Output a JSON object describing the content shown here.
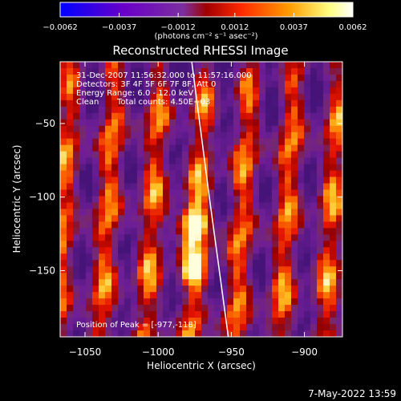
{
  "chart_data": {
    "type": "heatmap",
    "title": "Reconstructed RHESSI Image",
    "xlabel": "Heliocentric X (arcsec)",
    "ylabel": "Heliocentric Y (arcsec)",
    "xlim": [
      -1067,
      -874
    ],
    "ylim": [
      -195,
      -8
    ],
    "x_ticks": [
      -1050,
      -1000,
      -950,
      -900
    ],
    "y_ticks": [
      -50,
      -100,
      -150
    ],
    "x_tick_labels": [
      "−1050",
      "−1000",
      "−950",
      "−900"
    ],
    "y_tick_labels": [
      "−50",
      "−100",
      "−150"
    ],
    "colorbar": {
      "min": -0.0062,
      "max": 0.0062,
      "ticks": [
        -0.0062,
        -0.0037,
        -0.0012,
        0.0012,
        0.0037,
        0.0062
      ],
      "tick_labels": [
        "−0.0062",
        "−0.0037",
        "−0.0012",
        "0.0012",
        "0.0037",
        "0.0062"
      ],
      "unit_label": "(photons cm⁻² s⁻¹ asec⁻²)",
      "colors": [
        "#0000ff",
        "#6a00c8",
        "#7b2fa0",
        "#a00000",
        "#ff2a00",
        "#ff9a00",
        "#ffff80",
        "#ffffff"
      ]
    },
    "annotations": {
      "time_range": "31-Dec-2007 11:56:32.000 to 11:57:16.000",
      "detectors": "Detectors: 3F 4F 5F 6F 7F 8F, Att 0",
      "energy_range": "Energy Range: 6.0 - 12.0 keV",
      "method": "Clean",
      "total_counts": "Total counts: 4.50E+03",
      "peak": "Position of Peak = [-977,-118]"
    },
    "peak": {
      "x": -977,
      "y": -118
    },
    "limb": {
      "points": [
        [
          -977,
          -8
        ],
        [
          -965,
          -100
        ],
        [
          -952,
          -195
        ]
      ]
    },
    "grid": false,
    "legend": "colorbar-top"
  },
  "footer": {
    "timestamp": "7-May-2022 13:59"
  }
}
